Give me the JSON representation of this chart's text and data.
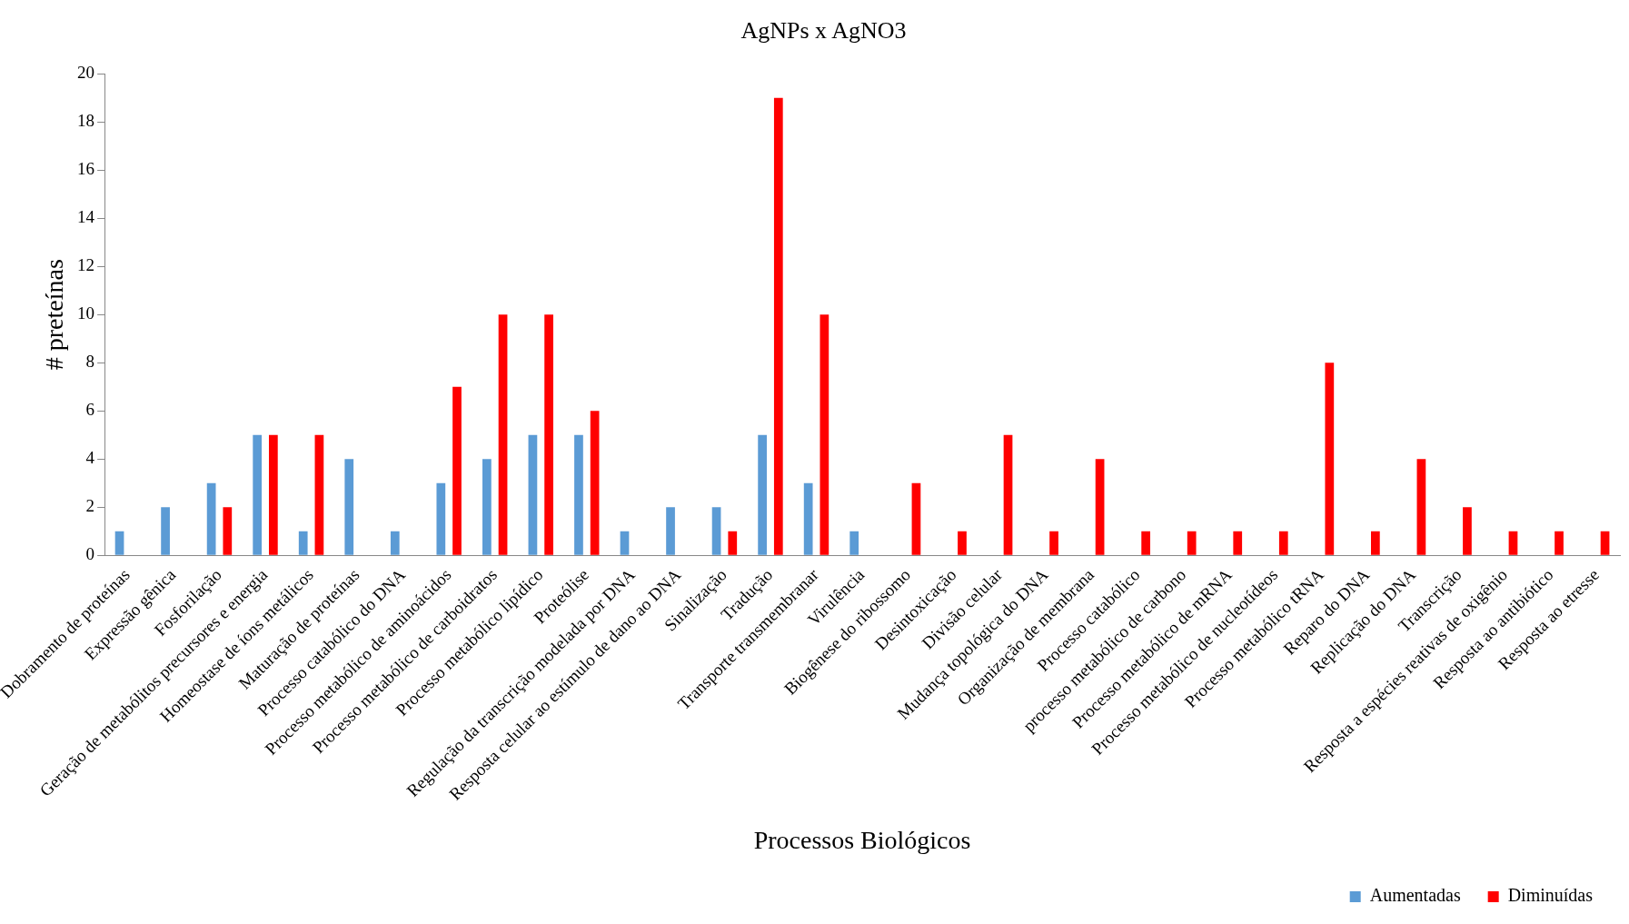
{
  "chart_data": {
    "type": "bar",
    "title": "AgNPs x AgNO3",
    "xlabel": "Processos Biológicos",
    "ylabel": "# preteínas",
    "categories": [
      "Dobramento de proteínas",
      "Expressão gênica",
      "Fosforilação",
      "Geração de metabólitos precursores e energia",
      "Homeostase de íons metálicos",
      "Maturação de proteínas",
      "Processo catabólico do DNA",
      "Processo metabólico de aminoácidos",
      "Processo metabólico de carboidratos",
      "Processo metabólico lipídico",
      "Proteólise",
      "Regulação da transcrição modelada por DNA",
      "Resposta celular ao estímulo de dano ao DNA",
      "Sinalização",
      "Tradução",
      "Transporte transmembranar",
      "Virulência",
      "Biogênese do ribossomo",
      "Desintoxicação",
      "Divisão celular",
      "Mudança topológica do DNA",
      "Organização de membrana",
      "Processo catabólico",
      "processo metabólico de carbono",
      "Processo metabólico de mRNA",
      "Processo metabólico de nucleotídeos",
      "Processo metabólico tRNA",
      "Reparo do DNA",
      "Replicação do DNA",
      "Transcrição",
      "Resposta a espécies reativas de oxigênio",
      "Resposta ao antibiótico",
      "Resposta ao etresse"
    ],
    "series": [
      {
        "name": "Aumentadas",
        "color": "#5b9bd5",
        "values": [
          1,
          2,
          3,
          5,
          1,
          4,
          1,
          3,
          4,
          5,
          5,
          1,
          2,
          2,
          5,
          3,
          1,
          0,
          0,
          0,
          0,
          0,
          0,
          0,
          0,
          0,
          0,
          0,
          0,
          0,
          0,
          0,
          0
        ]
      },
      {
        "name": "Diminuídas",
        "color": "#ff0000",
        "values": [
          0,
          0,
          2,
          5,
          5,
          0,
          0,
          7,
          10,
          10,
          6,
          0,
          0,
          1,
          19,
          10,
          0,
          3,
          1,
          5,
          1,
          4,
          1,
          1,
          1,
          1,
          8,
          1,
          4,
          2,
          1,
          1,
          1
        ]
      }
    ],
    "ylim": [
      0,
      20
    ],
    "yticks": [
      0,
      2,
      4,
      6,
      8,
      10,
      12,
      14,
      16,
      18,
      20
    ],
    "grid": false,
    "legend": "bottom right"
  }
}
